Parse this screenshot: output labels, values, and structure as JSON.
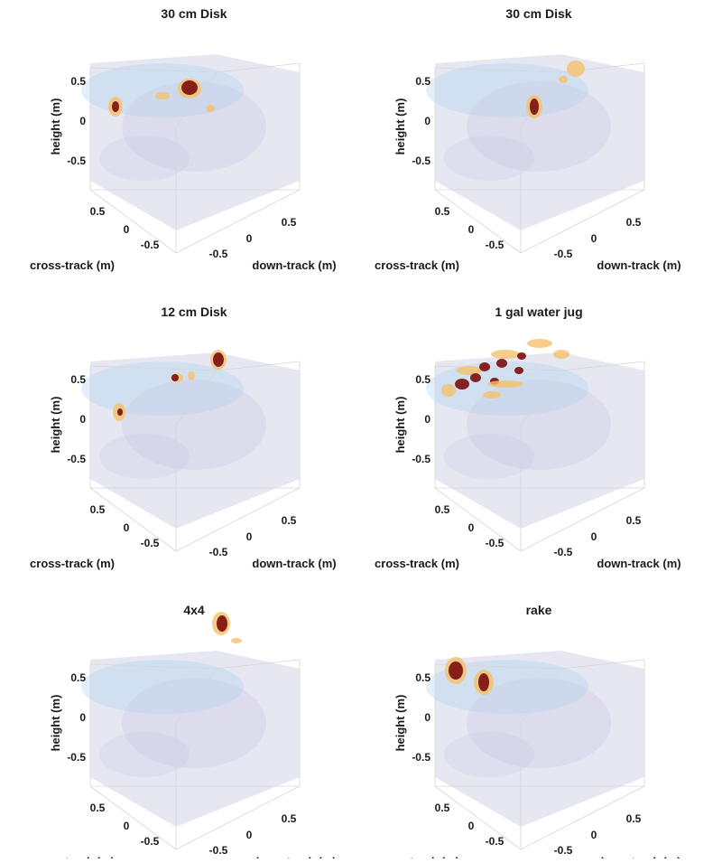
{
  "chart_data": [
    {
      "type": "heatmap",
      "title": "30 cm Disk",
      "ylabel": "height (m)",
      "xlabel": "cross-track (m)",
      "zlabel": "down-track (m)",
      "height_ticks": [
        "0.5",
        "0",
        "-0.5"
      ],
      "cross_ticks": [
        "0.5",
        "0",
        "-0.5"
      ],
      "down_ticks": [
        "-0.5",
        "0",
        "0.5"
      ]
    },
    {
      "type": "heatmap",
      "title": "30 cm Disk",
      "ylabel": "height (m)",
      "xlabel": "cross-track (m)",
      "zlabel": "down-track (m)",
      "height_ticks": [
        "0.5",
        "0",
        "-0.5"
      ],
      "cross_ticks": [
        "0.5",
        "0",
        "-0.5"
      ],
      "down_ticks": [
        "-0.5",
        "0",
        "0.5"
      ]
    },
    {
      "type": "heatmap",
      "title": "12 cm Disk",
      "ylabel": "height (m)",
      "xlabel": "cross-track (m)",
      "zlabel": "down-track (m)",
      "height_ticks": [
        "0.5",
        "0",
        "-0.5"
      ],
      "cross_ticks": [
        "0.5",
        "0",
        "-0.5"
      ],
      "down_ticks": [
        "-0.5",
        "0",
        "0.5"
      ]
    },
    {
      "type": "heatmap",
      "title": "1 gal water jug",
      "ylabel": "height (m)",
      "xlabel": "cross-track (m)",
      "zlabel": "down-track (m)",
      "height_ticks": [
        "0.5",
        "0",
        "-0.5"
      ],
      "cross_ticks": [
        "0.5",
        "0",
        "-0.5"
      ],
      "down_ticks": [
        "-0.5",
        "0",
        "0.5"
      ]
    },
    {
      "type": "heatmap",
      "title": "4x4",
      "ylabel": "height (m)",
      "xlabel": "cross-track (m)",
      "zlabel": "down-track (m)",
      "height_ticks": [
        "0.5",
        "0",
        "-0.5"
      ],
      "cross_ticks": [
        "0.5",
        "0",
        "-0.5"
      ],
      "down_ticks": [
        "-0.5",
        "0",
        "0.5"
      ]
    },
    {
      "type": "heatmap",
      "title": "rake",
      "ylabel": "height (m)",
      "xlabel": "cross-track (m)",
      "zlabel": "down-track (m)",
      "height_ticks": [
        "0.5",
        "0",
        "-0.5"
      ],
      "cross_ticks": [
        "0.5",
        "0",
        "-0.5"
      ],
      "down_ticks": [
        "-0.5",
        "0",
        "0.5"
      ]
    }
  ],
  "colors": {
    "background": "#ffffff",
    "haze": "#c9c9e3",
    "low": "#a8d3f0",
    "mid": "#b9e3a0",
    "high": "#f5c16c",
    "peak": "#7a0c0c"
  }
}
